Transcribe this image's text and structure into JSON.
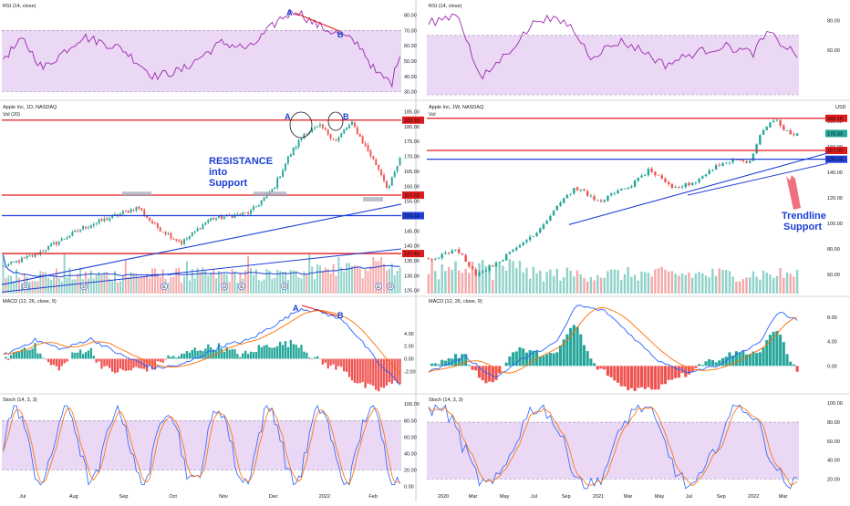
{
  "colors": {
    "up": "#26a69a",
    "down": "#ef5350",
    "up_vol": "#8fd2c9",
    "down_vol": "#f5a8a8",
    "rsi_line": "#9c27b0",
    "band_fill": "#ead8f4",
    "red_level": "#e01a1a",
    "blue_level": "#1f3fd6",
    "macd_line": "#2962ff",
    "signal_line": "#ff6d00",
    "stoch_k": "#2962ff",
    "stoch_d": "#ff6d00",
    "annotation_blue": "#1a3fd6",
    "annotation_red": "#e01a1a",
    "vol_ma": "#1f3fd6",
    "badge_green": "#26a69a",
    "badge_red": "#e01a1a",
    "badge_blue": "#1f3fd6"
  },
  "chart_data": [
    {
      "id": "daily",
      "type": "candlestick",
      "title": "Apple Inc, 1D, NASDAQ",
      "volume_label": "Vol (20)",
      "time_labels": [
        "Jul",
        "Aug",
        "Sep",
        "Oct",
        "Nov",
        "Dec",
        "2022",
        "Feb"
      ],
      "price_ticks": [
        "185.00",
        "180.00",
        "175.00",
        "170.00",
        "165.00",
        "160.00",
        "155.00",
        "150.00",
        "145.00",
        "140.00",
        "135.00",
        "130.00",
        "125.00"
      ],
      "ylim": [
        124,
        187
      ],
      "levels": [
        {
          "value": 182.18,
          "label": "182.18",
          "color": "red"
        },
        {
          "value": 157.03,
          "label": "157.03",
          "color": "red"
        },
        {
          "value": 150.14,
          "label": "150.14",
          "color": "blue"
        },
        {
          "value": 137.43,
          "label": "137.43",
          "color": "red"
        }
      ],
      "annotations": [
        "RESISTANCE",
        "into",
        "Support",
        "A",
        "B"
      ],
      "event_markers": [
        "D",
        "D",
        "E",
        "D",
        "E",
        "D",
        "E",
        "D"
      ],
      "rsi": {
        "title": "RSI (14, close)",
        "ticks": [
          "80.00",
          "70.00",
          "60.00",
          "50.00",
          "40.00",
          "30.00"
        ],
        "ylim": [
          28,
          88
        ],
        "band": [
          30,
          70
        ],
        "labels": [
          "A",
          "B"
        ]
      },
      "macd": {
        "title": "MACD (12, 26, close, 9)",
        "labels": [
          "A",
          "B"
        ]
      },
      "stoch": {
        "title": "Stoch (14, 3, 3)",
        "ticks": [
          "100.00",
          "80.00",
          "60.00",
          "40.00",
          "20.00",
          "0.00"
        ],
        "ylim": [
          -5,
          108
        ],
        "band": [
          20,
          80
        ]
      }
    },
    {
      "id": "weekly",
      "type": "candlestick",
      "title": "Apple Inc, 1W, NASDAQ",
      "volume_label": "Vol",
      "currency": "USD",
      "time_labels": [
        "2020",
        "Mar",
        "May",
        "Jul",
        "Sep",
        "2021",
        "Mar",
        "May",
        "Jul",
        "Sep",
        "2022",
        "Mar"
      ],
      "price_ticks": [
        "180.00",
        "160.00",
        "140.00",
        "120.00",
        "100.00",
        "80.00",
        "60.00"
      ],
      "ylim": [
        45,
        192
      ],
      "levels": [
        {
          "value": 182.18,
          "label": "182.18",
          "color": "red"
        },
        {
          "value": 157.03,
          "label": "157.03",
          "color": "red"
        },
        {
          "value": 150.14,
          "label": "150.14",
          "color": "blue"
        }
      ],
      "last_price": {
        "value": 170.33,
        "label": "170.33"
      },
      "annotations": [
        "Trendline",
        "Support"
      ],
      "rsi": {
        "title": "RSI (14, close)",
        "ticks": [
          "80.00",
          "60.00"
        ],
        "ylim": [
          30,
          92
        ],
        "band": [
          30,
          70
        ]
      },
      "macd": {
        "title": "MACD (12, 26, close, 9)",
        "ticks": [
          "8.00",
          "4.00",
          "0.00"
        ],
        "ylim": [
          -4,
          11
        ]
      },
      "stoch": {
        "title": "Stoch (14, 3, 3)",
        "ticks": [
          "100.00",
          "80.00",
          "60.00",
          "40.00",
          "20.00"
        ],
        "ylim": [
          8,
          106
        ],
        "band": [
          20,
          80
        ]
      }
    }
  ],
  "left_macd_ticks": [
    "4.00",
    "2.00",
    "0.00",
    "-2.00"
  ]
}
